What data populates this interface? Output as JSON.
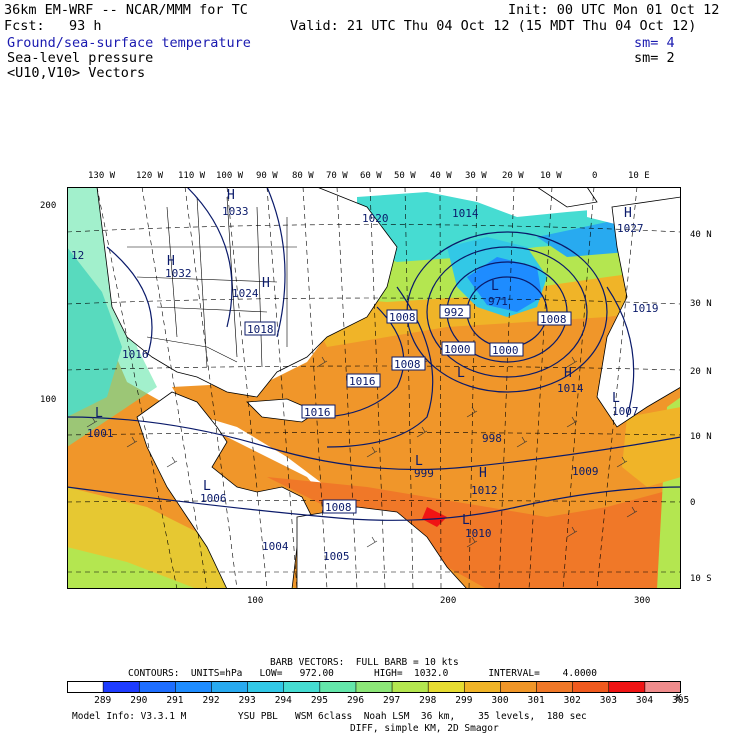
{
  "header": {
    "model": "36km EM-WRF -- NCAR/MMM for TC",
    "init": "Init: 00 UTC Mon 01 Oct 12",
    "fcst": "Fcst:   93 h",
    "valid": "Valid: 21 UTC Thu 04 Oct 12 (15 MDT Thu 04 Oct 12)"
  },
  "fields": [
    {
      "name": "Ground/sea-surface temperature",
      "sm": "sm= 4",
      "color": "#1a1ab0"
    },
    {
      "name": "Sea-level pressure",
      "sm": "sm= 2",
      "color": "#000000"
    },
    {
      "name": "<U10,V10> Vectors",
      "sm": "",
      "color": "#000000"
    }
  ],
  "top_lon_labels": [
    "130 W",
    "120 W",
    "110 W",
    "100 W",
    "90 W",
    "80 W",
    "70 W",
    "60 W",
    "50 W",
    "40 W",
    "30 W",
    "20 W",
    "10 W",
    "0",
    "10 E"
  ],
  "right_lat_labels": [
    "40 N",
    "30 N",
    "20 N",
    "10 N",
    "0",
    "10 S"
  ],
  "left_ticks": [
    "200",
    "100"
  ],
  "bottom_ticks": [
    "100",
    "200",
    "300"
  ],
  "pressure_labels": [
    {
      "text": "1033",
      "boxed": false
    },
    {
      "text": "1032",
      "boxed": false
    },
    {
      "text": "1024",
      "boxed": false
    },
    {
      "text": "1018",
      "boxed": true
    },
    {
      "text": "1016",
      "boxed": false
    },
    {
      "text": "1020",
      "boxed": false
    },
    {
      "text": "1014",
      "boxed": false
    },
    {
      "text": "1008",
      "boxed": true
    },
    {
      "text": "992",
      "boxed": true
    },
    {
      "text": "971",
      "boxed": false
    },
    {
      "text": "1000",
      "boxed": true
    },
    {
      "text": "1000",
      "boxed": true
    },
    {
      "text": "1008",
      "boxed": true
    },
    {
      "text": "1008",
      "boxed": true
    },
    {
      "text": "1016",
      "boxed": true
    },
    {
      "text": "1016",
      "boxed": true
    },
    {
      "text": "1014",
      "boxed": false
    },
    {
      "text": "1019",
      "boxed": false
    },
    {
      "text": "1027",
      "boxed": false
    },
    {
      "text": "1007",
      "boxed": false
    },
    {
      "text": "1001",
      "boxed": false
    },
    {
      "text": "1009",
      "boxed": false
    },
    {
      "text": "1006",
      "boxed": false
    },
    {
      "text": "999",
      "boxed": false
    },
    {
      "text": "998",
      "boxed": false
    },
    {
      "text": "1012",
      "boxed": false
    },
    {
      "text": "1010",
      "boxed": false
    },
    {
      "text": "1008",
      "boxed": true
    },
    {
      "text": "1004",
      "boxed": false
    },
    {
      "text": "1005",
      "boxed": false
    },
    {
      "text": "12",
      "boxed": false
    }
  ],
  "centers": [
    "H",
    "H",
    "H",
    "H",
    "L",
    "L",
    "L",
    "L",
    "H",
    "L",
    "L",
    "H",
    "L"
  ],
  "footer": {
    "barb": "BARB VECTORS:  FULL BARB = 10 kts",
    "contours": "CONTOURS:  UNITS=hPa   LOW=   972.00       HIGH=  1032.0       INTERVAL=    4.0000",
    "colorbar_unit": "K",
    "colorbar_values": [
      "289",
      "290",
      "291",
      "292",
      "293",
      "294",
      "295",
      "296",
      "297",
      "298",
      "299",
      "300",
      "301",
      "302",
      "303",
      "304",
      "305"
    ],
    "colorbar_colors": [
      "#ffffff",
      "#1e3cff",
      "#1e6eff",
      "#1e8cff",
      "#28aaf0",
      "#32c8e6",
      "#46dcd2",
      "#64e6aa",
      "#8ce678",
      "#b4e650",
      "#e6dc32",
      "#f0b428",
      "#f09628",
      "#f07828",
      "#f05a1e",
      "#f01414",
      "#f08c8c"
    ],
    "model_info": "Model Info: V3.3.1 M         YSU PBL   WSM 6class  Noah LSM  36 km,    35 levels,  180 sec",
    "model_info2": "DIFF, simple KM, 2D Smagor"
  }
}
